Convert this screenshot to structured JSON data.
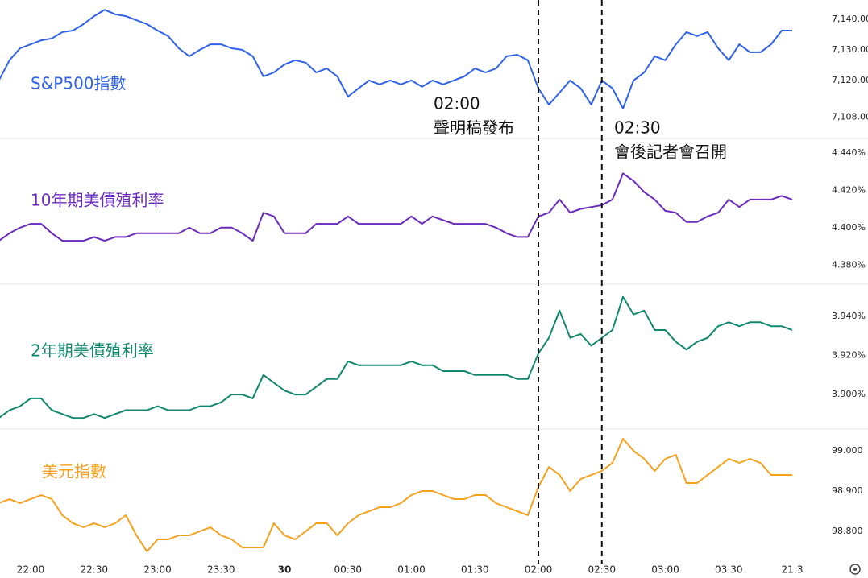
{
  "chart_data": [
    {
      "type": "line",
      "series": [
        {
          "name": "S&P500指數",
          "color": "#2f62e8",
          "values": [
            7120.0,
            7126.6,
            7130.5,
            7131.8,
            7133.1,
            7133.7,
            7135.8,
            7136.3,
            7138.4,
            7141.0,
            7143.1,
            7141.6,
            7141.0,
            7139.7,
            7138.4,
            7136.3,
            7134.5,
            7130.5,
            7127.9,
            7130.0,
            7131.8,
            7131.8,
            7130.5,
            7130.0,
            7127.9,
            7121.3,
            7122.6,
            7125.2,
            7126.6,
            7125.8,
            7122.6,
            7123.9,
            7121.3,
            7114.7,
            7117.4,
            7120.0,
            7118.7,
            7120.0,
            7118.7,
            7120.0,
            7117.9,
            7120.0,
            7118.7,
            7120.0,
            7121.3,
            7123.9,
            7122.6,
            7123.9,
            7127.9,
            7128.4,
            7126.6,
            7117.4,
            7112.1,
            7116.0,
            7120.0,
            7117.4,
            7112.1,
            7120.0,
            7117.4,
            7110.8,
            7120.0,
            7122.6,
            7127.9,
            7126.6,
            7131.8,
            7135.8,
            7134.5,
            7135.8,
            7130.5,
            7126.6,
            7131.8,
            7129.2,
            7129.2,
            7131.8,
            7136.3,
            7136.3
          ]
        }
      ],
      "ylim": [
        7101,
        7146.3
      ],
      "yticks": [
        {
          "value": 7140,
          "label": "7,140.00"
        },
        {
          "value": 7130,
          "label": "7,130.00"
        },
        {
          "value": 7120,
          "label": "7,120.00"
        },
        {
          "value": 7108,
          "label": "7,108.00"
        }
      ],
      "annotations": [
        {
          "label": "02:00",
          "text": "聲明稿發布"
        },
        {
          "label": "02:30",
          "text": "會後記者會召開"
        }
      ]
    },
    {
      "type": "line",
      "series": [
        {
          "name": "10年期美債殖利率",
          "color": "#6a2bbd",
          "values": [
            4.393,
            4.397,
            4.4,
            4.402,
            4.402,
            4.397,
            4.393,
            4.393,
            4.393,
            4.395,
            4.393,
            4.395,
            4.395,
            4.397,
            4.397,
            4.397,
            4.397,
            4.397,
            4.4,
            4.397,
            4.397,
            4.4,
            4.4,
            4.397,
            4.393,
            4.408,
            4.406,
            4.397,
            4.397,
            4.397,
            4.402,
            4.402,
            4.402,
            4.406,
            4.402,
            4.402,
            4.402,
            4.402,
            4.402,
            4.406,
            4.402,
            4.406,
            4.404,
            4.402,
            4.402,
            4.402,
            4.402,
            4.4,
            4.397,
            4.395,
            4.395,
            4.406,
            4.408,
            4.415,
            4.408,
            4.41,
            4.411,
            4.412,
            4.415,
            4.429,
            4.425,
            4.419,
            4.415,
            4.409,
            4.408,
            4.403,
            4.403,
            4.406,
            4.408,
            4.415,
            4.411,
            4.415,
            4.415,
            4.415,
            4.417,
            4.415
          ]
        }
      ],
      "ylim": [
        4.3698,
        4.4468
      ],
      "yticks": [
        {
          "value": 4.44,
          "label": "4.440%"
        },
        {
          "value": 4.42,
          "label": "4.420%"
        },
        {
          "value": 4.4,
          "label": "4.400%"
        },
        {
          "value": 4.38,
          "label": "4.380%"
        }
      ]
    },
    {
      "type": "line",
      "series": [
        {
          "name": "2年期美債殖利率",
          "color": "#12876f",
          "values": [
            3.888,
            3.892,
            3.894,
            3.898,
            3.898,
            3.892,
            3.89,
            3.888,
            3.888,
            3.89,
            3.888,
            3.89,
            3.892,
            3.892,
            3.892,
            3.894,
            3.892,
            3.892,
            3.892,
            3.894,
            3.894,
            3.896,
            3.9,
            3.9,
            3.898,
            3.91,
            3.906,
            3.902,
            3.9,
            3.9,
            3.904,
            3.908,
            3.908,
            3.917,
            3.915,
            3.915,
            3.915,
            3.915,
            3.915,
            3.917,
            3.915,
            3.915,
            3.912,
            3.912,
            3.912,
            3.91,
            3.91,
            3.91,
            3.91,
            3.908,
            3.908,
            3.921,
            3.929,
            3.943,
            3.929,
            3.931,
            3.925,
            3.929,
            3.933,
            3.95,
            3.941,
            3.943,
            3.933,
            3.933,
            3.927,
            3.923,
            3.927,
            3.929,
            3.935,
            3.937,
            3.935,
            3.937,
            3.937,
            3.935,
            3.935,
            3.933
          ]
        }
      ],
      "ylim": [
        3.8823,
        3.9557
      ],
      "yticks": [
        {
          "value": 3.94,
          "label": "3.940%"
        },
        {
          "value": 3.92,
          "label": "3.920%"
        },
        {
          "value": 3.9,
          "label": "3.900%"
        }
      ]
    },
    {
      "type": "line",
      "categories": [
        null,
        null,
        null,
        "22:00",
        null,
        null,
        null,
        null,
        null,
        "22:30",
        null,
        null,
        null,
        null,
        null,
        "23:00",
        null,
        null,
        null,
        null,
        null,
        "23:30",
        null,
        null,
        null,
        null,
        null,
        "30",
        null,
        null,
        null,
        null,
        null,
        "00:30",
        null,
        null,
        null,
        null,
        null,
        "01:00",
        null,
        null,
        null,
        null,
        null,
        "01:30",
        null,
        null,
        null,
        null,
        null,
        "02:00",
        null,
        null,
        null,
        null,
        null,
        "02:30",
        null,
        null,
        null,
        null,
        null,
        "03:00",
        null,
        null,
        null,
        null,
        null,
        "03:30",
        null,
        null,
        null,
        null,
        null,
        "21:3"
      ],
      "series": [
        {
          "name": "美元指數",
          "color": "#f5a01a",
          "values": [
            98.87,
            98.88,
            98.87,
            98.88,
            98.89,
            98.88,
            98.84,
            98.82,
            98.81,
            98.82,
            98.81,
            98.82,
            98.84,
            98.79,
            98.75,
            98.78,
            98.78,
            98.79,
            98.79,
            98.8,
            98.81,
            98.79,
            98.78,
            98.76,
            98.76,
            98.76,
            98.82,
            98.79,
            98.78,
            98.8,
            98.82,
            98.82,
            98.79,
            98.82,
            98.84,
            98.85,
            98.86,
            98.86,
            98.87,
            98.89,
            98.9,
            98.9,
            98.89,
            98.88,
            98.88,
            98.89,
            98.89,
            98.87,
            98.86,
            98.85,
            98.84,
            98.91,
            98.96,
            98.94,
            98.9,
            98.93,
            98.94,
            98.95,
            98.97,
            99.03,
            99.0,
            98.98,
            98.95,
            98.98,
            98.99,
            98.92,
            98.92,
            98.94,
            98.96,
            98.98,
            98.97,
            98.98,
            98.97,
            98.94,
            98.94,
            98.94
          ]
        }
      ],
      "ylim": [
        98.74,
        99.05
      ],
      "yticks": [
        {
          "value": 99.0,
          "label": "99.000"
        },
        {
          "value": 98.9,
          "label": "98.900"
        },
        {
          "value": 98.8,
          "label": "98.800"
        }
      ]
    }
  ]
}
